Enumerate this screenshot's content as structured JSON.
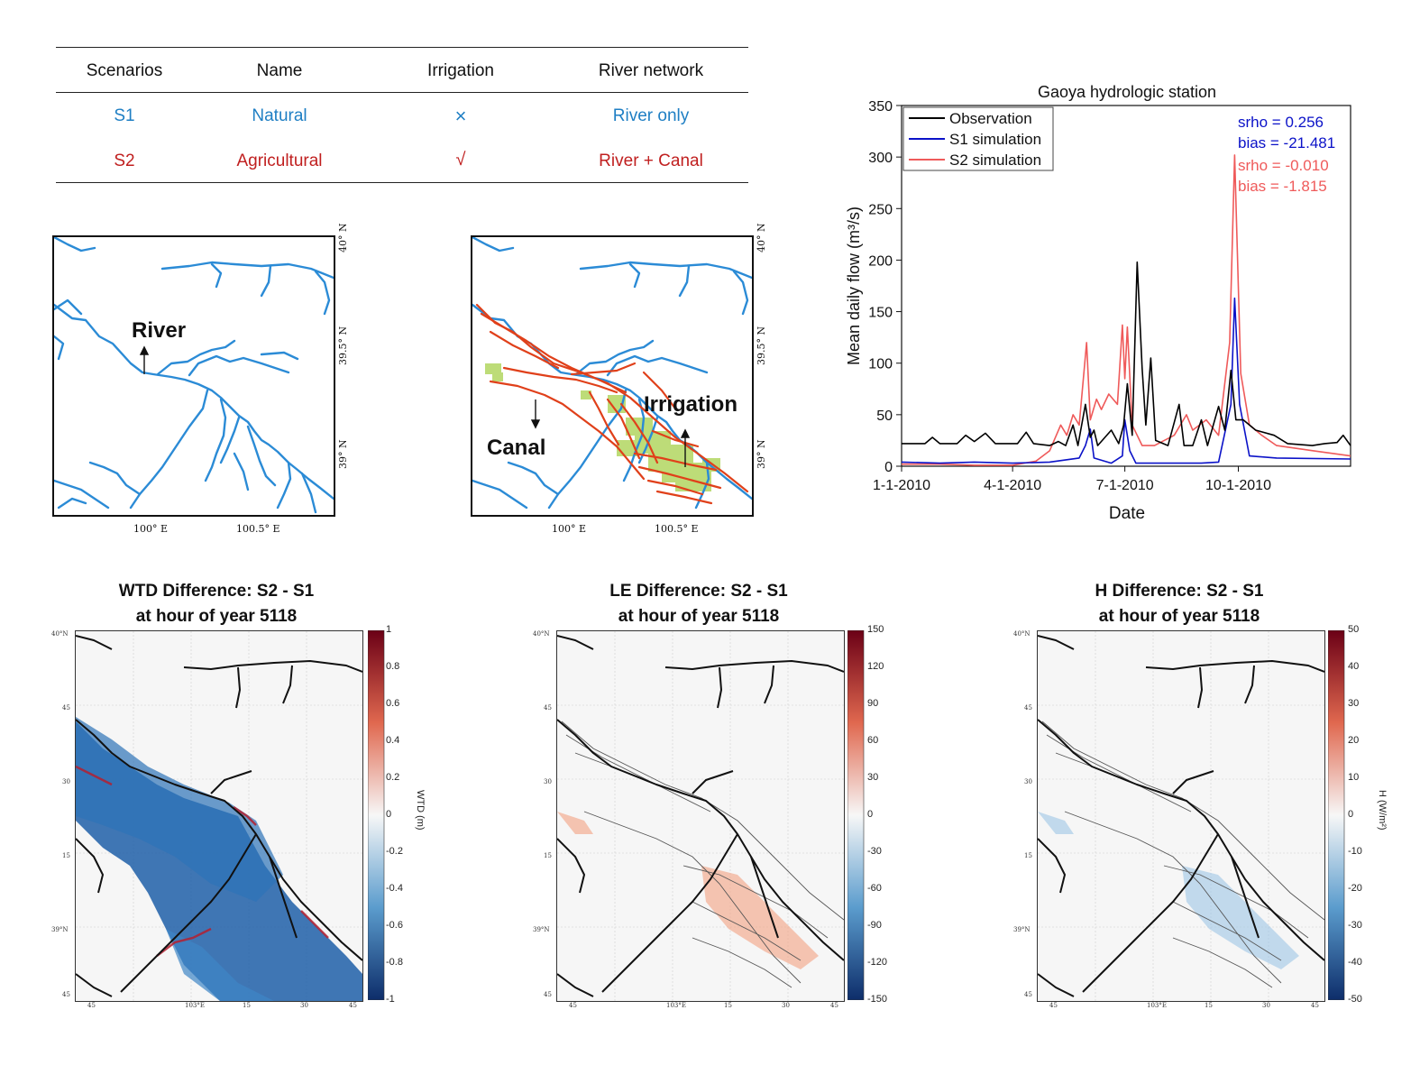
{
  "table": {
    "headers": [
      "Scenarios",
      "Name",
      "Irrigation",
      "River network"
    ],
    "rows": [
      {
        "scenario": "S1",
        "name": "Natural",
        "irrigation": "×",
        "network": "River only"
      },
      {
        "scenario": "S2",
        "name": "Agricultural",
        "irrigation": "√",
        "network": "River + Canal"
      }
    ]
  },
  "maps": {
    "left": {
      "label_river": "River",
      "lat_ticks": [
        "40° N",
        "39.5° N",
        "39° N"
      ],
      "lon_ticks": [
        "100° E",
        "100.5° E"
      ]
    },
    "right": {
      "label_canal": "Canal",
      "label_irrigation": "Irrigation",
      "lat_ticks": [
        "40° N",
        "39.5° N",
        "39° N"
      ],
      "lon_ticks": [
        "100° E",
        "100.5° E"
      ]
    }
  },
  "colors": {
    "river": "#2b8bd6",
    "canal": "#e0401a",
    "irrigated": "#b6d96a",
    "observation": "#000000",
    "s1": "#0b12c8",
    "s2": "#ef5a5a"
  },
  "chart_data": {
    "type": "line",
    "title": "Gaoya hydrologic station",
    "xlabel": "Date",
    "ylabel": "Mean daily flow (m³/s)",
    "ylim": [
      0,
      350
    ],
    "yticks": [
      "0",
      "50",
      "100",
      "150",
      "200",
      "250",
      "300",
      "350"
    ],
    "xlim": [
      "2010-01-01",
      "2010-12-31"
    ],
    "xtick_labels": [
      "1-1-2010",
      "4-1-2010",
      "7-1-2010",
      "10-1-2010"
    ],
    "xtick_dates": [
      "2010-01-01",
      "2010-04-01",
      "2010-07-01",
      "2010-10-01"
    ],
    "legend_position": "top-left",
    "series": [
      {
        "name": "Observation",
        "color": "#000000",
        "points": [
          [
            "2010-01-01",
            22
          ],
          [
            "2010-01-20",
            22
          ],
          [
            "2010-01-26",
            28
          ],
          [
            "2010-02-01",
            22
          ],
          [
            "2010-02-15",
            22
          ],
          [
            "2010-02-22",
            30
          ],
          [
            "2010-03-01",
            24
          ],
          [
            "2010-03-10",
            32
          ],
          [
            "2010-03-18",
            22
          ],
          [
            "2010-03-28",
            22
          ],
          [
            "2010-04-05",
            22
          ],
          [
            "2010-04-12",
            33
          ],
          [
            "2010-04-18",
            22
          ],
          [
            "2010-05-01",
            20
          ],
          [
            "2010-05-08",
            24
          ],
          [
            "2010-05-14",
            20
          ],
          [
            "2010-05-20",
            40
          ],
          [
            "2010-05-24",
            20
          ],
          [
            "2010-05-30",
            60
          ],
          [
            "2010-06-03",
            28
          ],
          [
            "2010-06-06",
            35
          ],
          [
            "2010-06-09",
            20
          ],
          [
            "2010-06-20",
            35
          ],
          [
            "2010-06-26",
            22
          ],
          [
            "2010-06-30",
            40
          ],
          [
            "2010-07-03",
            80
          ],
          [
            "2010-07-07",
            30
          ],
          [
            "2010-07-11",
            198
          ],
          [
            "2010-07-15",
            95
          ],
          [
            "2010-07-18",
            40
          ],
          [
            "2010-07-22",
            105
          ],
          [
            "2010-07-26",
            25
          ],
          [
            "2010-08-05",
            20
          ],
          [
            "2010-08-14",
            60
          ],
          [
            "2010-08-18",
            20
          ],
          [
            "2010-08-25",
            20
          ],
          [
            "2010-09-01",
            45
          ],
          [
            "2010-09-06",
            20
          ],
          [
            "2010-09-15",
            58
          ],
          [
            "2010-09-20",
            35
          ],
          [
            "2010-09-25",
            93
          ],
          [
            "2010-09-29",
            45
          ],
          [
            "2010-10-05",
            45
          ],
          [
            "2010-10-15",
            35
          ],
          [
            "2010-10-30",
            30
          ],
          [
            "2010-11-10",
            22
          ],
          [
            "2010-11-30",
            20
          ],
          [
            "2010-12-10",
            22
          ],
          [
            "2010-12-20",
            23
          ],
          [
            "2010-12-25",
            30
          ],
          [
            "2010-12-31",
            20
          ]
        ]
      },
      {
        "name": "S1 simulation",
        "color": "#0b12c8",
        "points": [
          [
            "2010-01-01",
            4
          ],
          [
            "2010-02-01",
            3
          ],
          [
            "2010-03-01",
            4
          ],
          [
            "2010-04-01",
            3
          ],
          [
            "2010-05-01",
            4
          ],
          [
            "2010-05-25",
            8
          ],
          [
            "2010-05-30",
            20
          ],
          [
            "2010-06-03",
            36
          ],
          [
            "2010-06-06",
            8
          ],
          [
            "2010-06-20",
            3
          ],
          [
            "2010-06-29",
            10
          ],
          [
            "2010-07-01",
            45
          ],
          [
            "2010-07-05",
            15
          ],
          [
            "2010-07-10",
            3
          ],
          [
            "2010-08-01",
            3
          ],
          [
            "2010-09-01",
            3
          ],
          [
            "2010-09-15",
            4
          ],
          [
            "2010-09-25",
            60
          ],
          [
            "2010-09-28",
            163
          ],
          [
            "2010-10-02",
            60
          ],
          [
            "2010-10-10",
            10
          ],
          [
            "2010-11-01",
            8
          ],
          [
            "2010-12-31",
            7
          ]
        ]
      },
      {
        "name": "S2 simulation",
        "color": "#ef5a5a",
        "points": [
          [
            "2010-01-01",
            2
          ],
          [
            "2010-02-01",
            2
          ],
          [
            "2010-03-01",
            1
          ],
          [
            "2010-04-01",
            1
          ],
          [
            "2010-04-20",
            5
          ],
          [
            "2010-05-01",
            15
          ],
          [
            "2010-05-10",
            40
          ],
          [
            "2010-05-15",
            30
          ],
          [
            "2010-05-20",
            50
          ],
          [
            "2010-05-25",
            40
          ],
          [
            "2010-05-31",
            120
          ],
          [
            "2010-06-03",
            45
          ],
          [
            "2010-06-08",
            65
          ],
          [
            "2010-06-12",
            55
          ],
          [
            "2010-06-18",
            70
          ],
          [
            "2010-06-25",
            60
          ],
          [
            "2010-06-29",
            137
          ],
          [
            "2010-07-01",
            85
          ],
          [
            "2010-07-03",
            135
          ],
          [
            "2010-07-07",
            40
          ],
          [
            "2010-07-15",
            20
          ],
          [
            "2010-07-25",
            20
          ],
          [
            "2010-08-10",
            30
          ],
          [
            "2010-08-20",
            50
          ],
          [
            "2010-08-25",
            35
          ],
          [
            "2010-09-05",
            45
          ],
          [
            "2010-09-15",
            30
          ],
          [
            "2010-09-24",
            120
          ],
          [
            "2010-09-28",
            302
          ],
          [
            "2010-10-03",
            90
          ],
          [
            "2010-10-10",
            40
          ],
          [
            "2010-10-20",
            30
          ],
          [
            "2010-11-01",
            20
          ],
          [
            "2010-12-01",
            15
          ],
          [
            "2010-12-31",
            10
          ]
        ]
      }
    ],
    "annotations": [
      {
        "text": "srho = 0.256",
        "color": "#0b12c8"
      },
      {
        "text": "bias = -21.481",
        "color": "#0b12c8"
      },
      {
        "text": "srho = -0.010",
        "color": "#ef5a5a"
      },
      {
        "text": "bias = -1.815",
        "color": "#ef5a5a"
      }
    ]
  },
  "diff_panels": [
    {
      "title1": "WTD Difference: S2 - S1",
      "title2": "at hour of year 5118",
      "cb_ticks": [
        "1",
        "0.8",
        "0.6",
        "0.4",
        "0.2",
        "0",
        "-0.2",
        "-0.4",
        "-0.6",
        "-0.8",
        "-1"
      ],
      "unit": "WTD (m)"
    },
    {
      "title1": "LE Difference: S2 - S1",
      "title2": "at hour of year 5118",
      "cb_ticks": [
        "150",
        "120",
        "90",
        "60",
        "30",
        "0",
        "-30",
        "-60",
        "-90",
        "-120",
        "-150"
      ],
      "unit": ""
    },
    {
      "title1": "H Difference: S2 - S1",
      "title2": "at hour of year 5118",
      "cb_ticks": [
        "50",
        "40",
        "30",
        "20",
        "10",
        "0",
        "-10",
        "-20",
        "-30",
        "-40",
        "-50"
      ],
      "unit": "H (W/m²)"
    }
  ],
  "diff_axis": {
    "lat_ticks": [
      "40°N",
      "45",
      "30",
      "15",
      "39°N",
      "45"
    ],
    "lon_ticks": [
      "45",
      "103°E",
      "15",
      "30",
      "45"
    ]
  }
}
